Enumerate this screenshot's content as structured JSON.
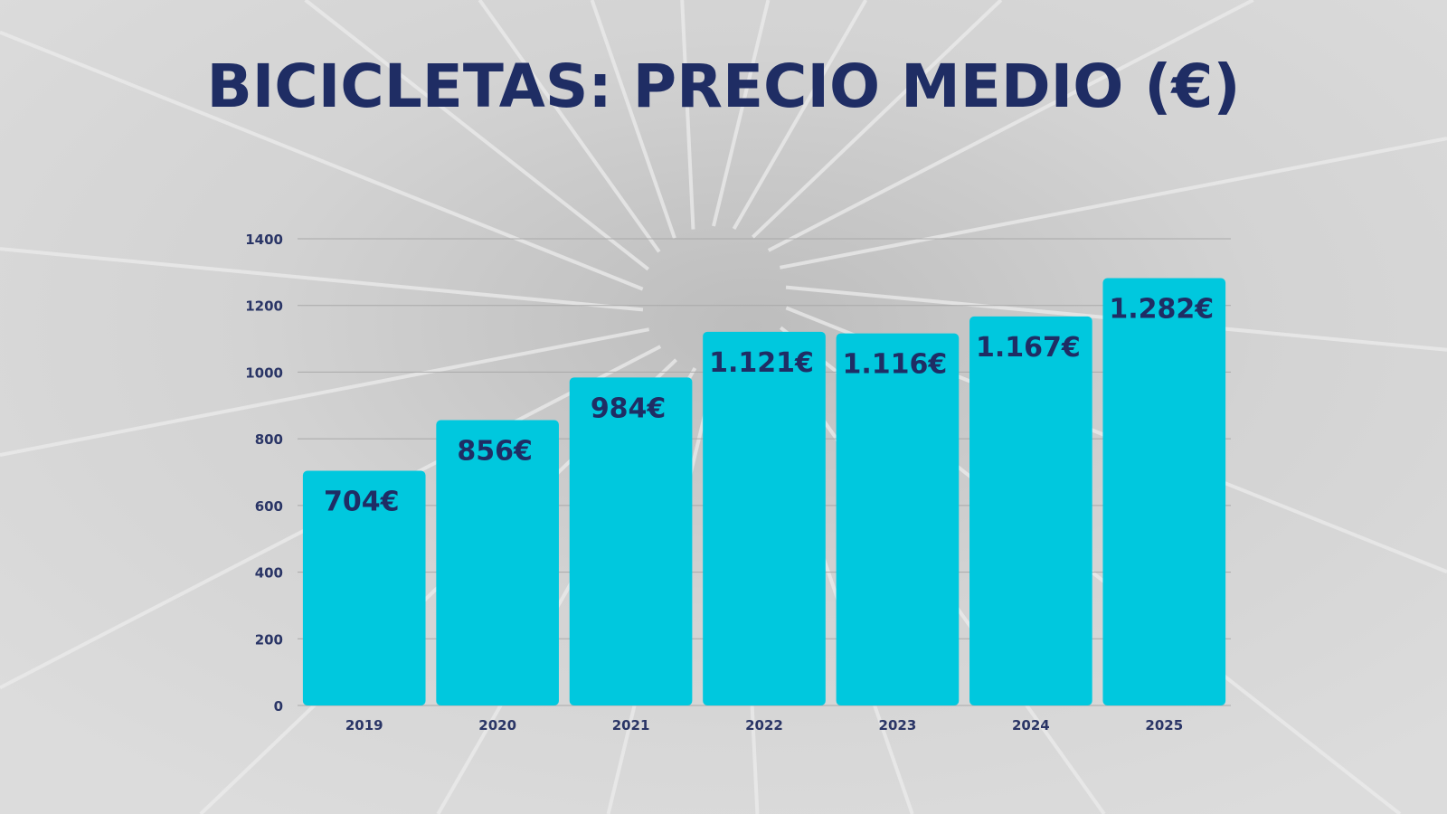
{
  "chart_data": {
    "type": "bar",
    "title": "BICICLETAS: PRECIO MEDIO (€)",
    "categories": [
      "2019",
      "2020",
      "2021",
      "2022",
      "2023",
      "2024",
      "2025"
    ],
    "values": [
      704,
      856,
      984,
      1121,
      1116,
      1167,
      1282
    ],
    "data_labels": [
      "704€",
      "856€",
      "984€",
      "1.121€",
      "1.116€",
      "1.167€",
      "1.282€"
    ],
    "xlabel": "",
    "ylabel": "",
    "ylim": [
      0,
      1400
    ],
    "yticks": [
      "0",
      "200",
      "400",
      "600",
      "800",
      "1000",
      "1200",
      "1400"
    ],
    "grid": true,
    "legend": "none",
    "colors": {
      "bar": "#00c8de",
      "text": "#1f2d64",
      "background": "#d4d4d4"
    }
  }
}
